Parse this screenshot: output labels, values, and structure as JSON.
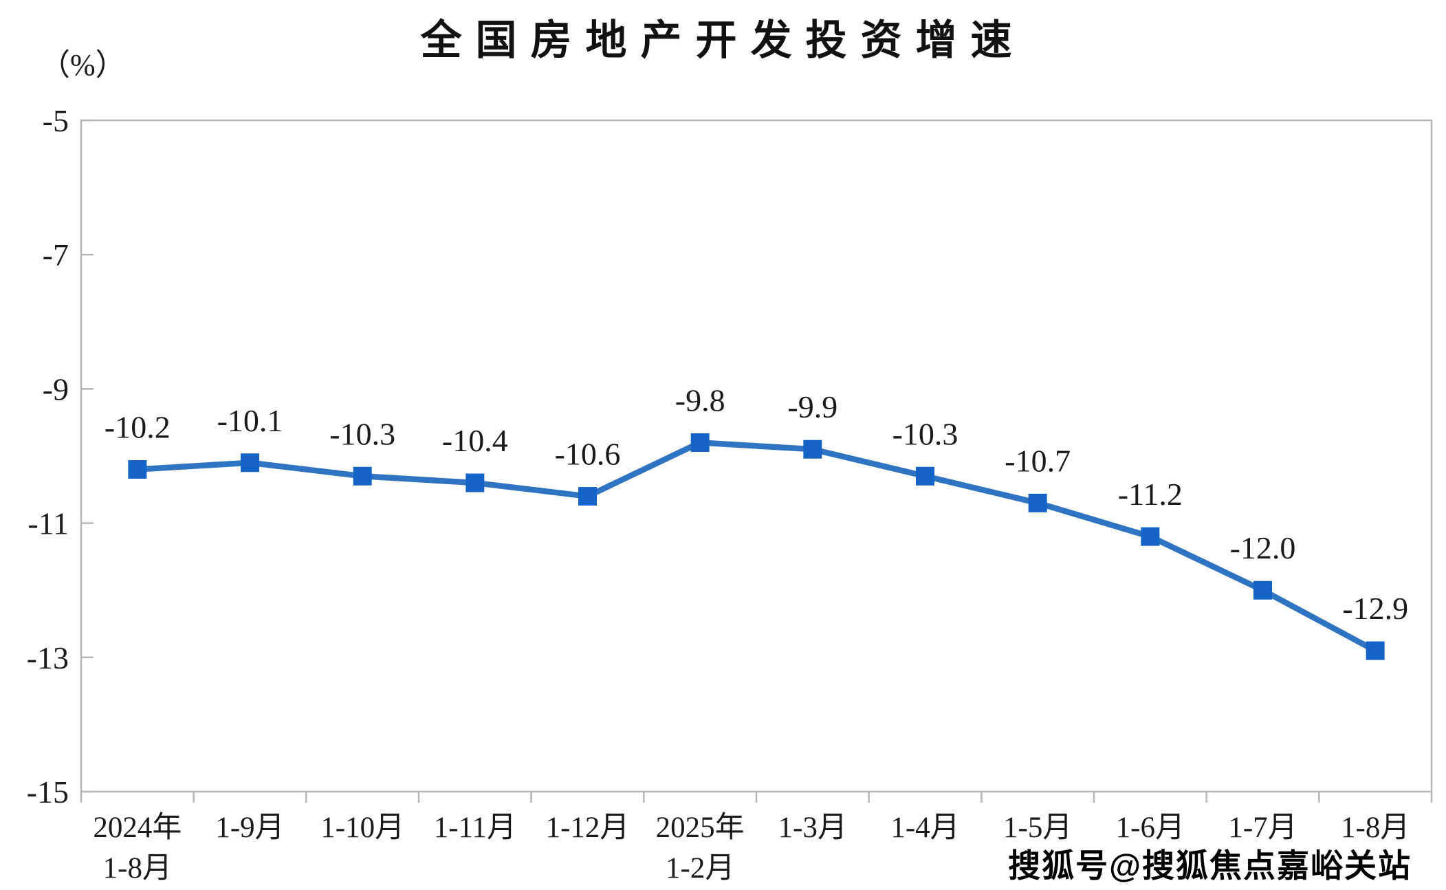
{
  "chart_data": {
    "type": "line",
    "title": "全国房地产开发投资增速",
    "unit_label": "（%）",
    "categories": [
      [
        "2024年",
        "1-8月"
      ],
      [
        "1-9月"
      ],
      [
        "1-10月"
      ],
      [
        "1-11月"
      ],
      [
        "1-12月"
      ],
      [
        "2025年",
        "1-2月"
      ],
      [
        "1-3月"
      ],
      [
        "1-4月"
      ],
      [
        "1-5月"
      ],
      [
        "1-6月"
      ],
      [
        "1-7月"
      ],
      [
        "1-8月"
      ]
    ],
    "values": [
      -10.2,
      -10.1,
      -10.3,
      -10.4,
      -10.6,
      -9.8,
      -9.9,
      -10.3,
      -10.7,
      -11.2,
      -12.0,
      -12.9
    ],
    "data_labels": [
      "-10.2",
      "-10.1",
      "-10.3",
      "-10.4",
      "-10.6",
      "-9.8",
      "-9.9",
      "-10.3",
      "-10.7",
      "-11.2",
      "-12.0",
      "-12.9"
    ],
    "ylim": [
      -15,
      -5
    ],
    "yticks": [
      -5,
      -7,
      -9,
      -11,
      -13,
      -15
    ],
    "ytick_labels": [
      "-5",
      "-7",
      "-9",
      "-11",
      "-13",
      "-15"
    ],
    "grid": false,
    "legend_position": "none",
    "line_color": "#2f74c2",
    "marker_color": "#1464c8",
    "axis_color": "#b7b7b7",
    "text_color": "#1a1a1a"
  },
  "watermark": {
    "text": "搜狐号@搜狐焦点嘉峪关站"
  }
}
